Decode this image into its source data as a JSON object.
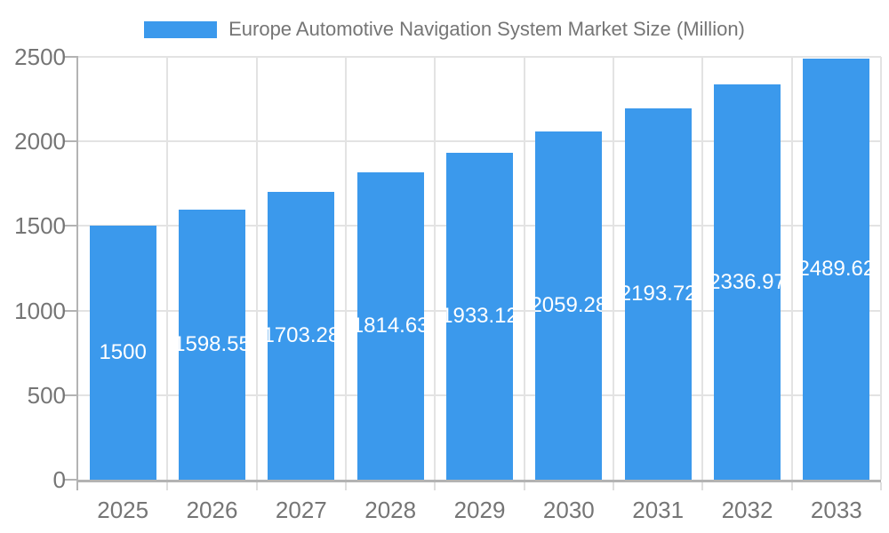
{
  "legend": {
    "label": "Europe Automotive Navigation System Market Size (Million)"
  },
  "chart_data": {
    "type": "bar",
    "title": "Europe Automotive Navigation System Market Size (Million)",
    "categories": [
      "2025",
      "2026",
      "2027",
      "2028",
      "2029",
      "2030",
      "2031",
      "2032",
      "2033"
    ],
    "values": [
      1500,
      1598.55,
      1703.28,
      1814.63,
      1933.12,
      2059.28,
      2193.72,
      2336.97,
      2489.62
    ],
    "value_labels": [
      "1500",
      "1598.55",
      "1703.28",
      "1814.63",
      "1933.12",
      "2059.28",
      "2193.72",
      "2336.97",
      "2489.62"
    ],
    "xlabel": "",
    "ylabel": "",
    "ylim": [
      0,
      2500
    ],
    "yticks": [
      0,
      500,
      1000,
      1500,
      2000,
      2500
    ],
    "grid": true,
    "legend_position": "top",
    "colors": {
      "bar": "#3B99EC",
      "grid": "#e3e3e3",
      "axis": "#b3b3b3",
      "minor_tick": "#dedede",
      "axis_text": "#757575",
      "bar_label_text": "#ffffff",
      "background": "#ffffff"
    }
  }
}
